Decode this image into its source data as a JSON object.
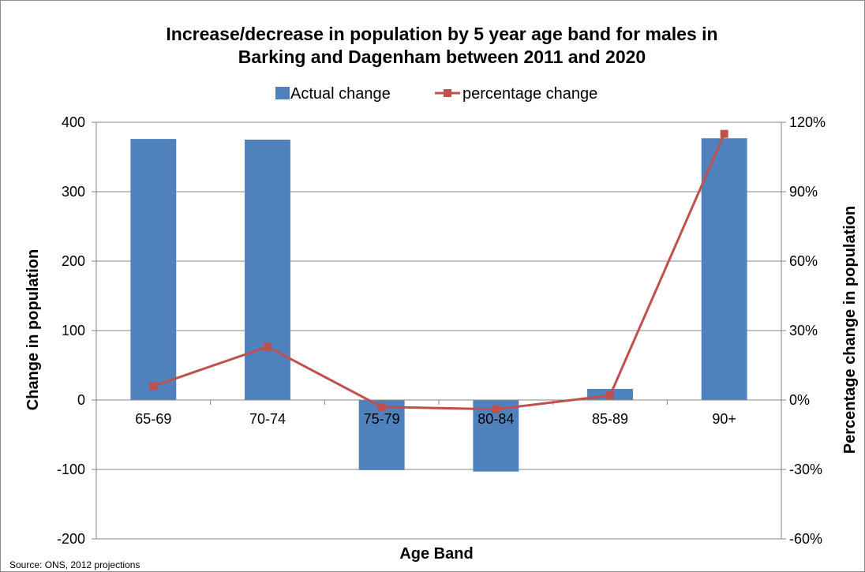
{
  "chart_data": {
    "type": "bar",
    "title": "Increase/decrease in population by 5 year age band for males in Barking and Dagenham between 2011 and 2020",
    "title_lines": [
      "Increase/decrease in population by 5 year age band for males in",
      "Barking and Dagenham between 2011 and 2020"
    ],
    "xlabel": "Age Band",
    "ylabel": "Change in population",
    "y2label": "Percentage change in population",
    "categories": [
      "65-69",
      "70-74",
      "75-79",
      "80-84",
      "85-89",
      "90+"
    ],
    "ylim": [
      -200,
      400
    ],
    "yticks": [
      -200,
      -100,
      0,
      100,
      200,
      300,
      400
    ],
    "y2lim": [
      -0.6,
      1.2
    ],
    "y2ticks": [
      "-60%",
      "-30%",
      "0%",
      "30%",
      "60%",
      "90%",
      "120%"
    ],
    "grid": true,
    "legend_position": "top",
    "series": [
      {
        "name": "Actual change",
        "kind": "bar",
        "axis": "left",
        "color": "#4f81bd",
        "values": [
          376,
          375,
          -101,
          -103,
          16,
          377
        ]
      },
      {
        "name": "percentage change",
        "kind": "line",
        "axis": "right",
        "color": "#c0504d",
        "marker": "square",
        "values": [
          0.06,
          0.23,
          -0.03,
          -0.04,
          0.02,
          1.15
        ]
      }
    ],
    "source": "Source: ONS, 2012 projections"
  }
}
